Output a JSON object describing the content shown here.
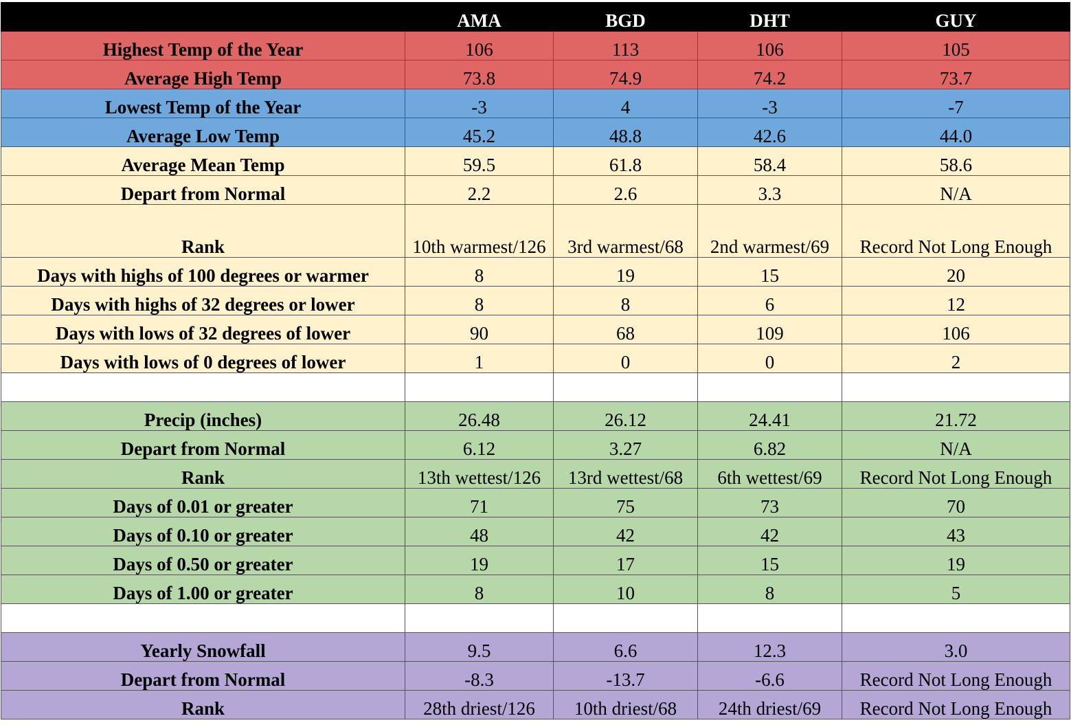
{
  "header": {
    "corner": "",
    "stations": [
      "AMA",
      "BGD",
      "DHT",
      "GUY"
    ]
  },
  "rows": [
    {
      "label": "Highest Temp of the Year",
      "values": [
        "106",
        "113",
        "106",
        "105"
      ],
      "color": "#e06666"
    },
    {
      "label": "Average High Temp",
      "values": [
        "73.8",
        "74.9",
        "74.2",
        "73.7"
      ],
      "color": "#e06666"
    },
    {
      "label": "Lowest Temp of the Year",
      "values": [
        "-3",
        "4",
        "-3",
        "-7"
      ],
      "color": "#6fa8dc"
    },
    {
      "label": "Average Low Temp",
      "values": [
        "45.2",
        "48.8",
        "42.6",
        "44.0"
      ],
      "color": "#6fa8dc"
    },
    {
      "label": "Average Mean Temp",
      "values": [
        "59.5",
        "61.8",
        "58.4",
        "58.6"
      ],
      "color": "#fff2cc"
    },
    {
      "label": "Depart from Normal",
      "values": [
        "2.2",
        "2.6",
        "3.3",
        "N/A"
      ],
      "color": "#fff2cc"
    },
    {
      "label": "Rank",
      "values": [
        "10th warmest/126",
        "3rd warmest/68",
        "2nd warmest/69",
        "Record Not Long Enough"
      ],
      "color": "#fff2cc"
    },
    {
      "label": "Days with highs of 100 degrees or warmer",
      "values": [
        "8",
        "19",
        "15",
        "20"
      ],
      "color": "#fff2cc"
    },
    {
      "label": "Days with highs of 32 degrees or lower",
      "values": [
        "8",
        "8",
        "6",
        "12"
      ],
      "color": "#fff2cc"
    },
    {
      "label": "Days with lows of 32 degrees of lower",
      "values": [
        "90",
        "68",
        "109",
        "106"
      ],
      "color": "#fff2cc"
    },
    {
      "label": "Days with lows of 0 degrees of lower",
      "values": [
        "1",
        "0",
        "0",
        "2"
      ],
      "color": "#fff2cc"
    },
    {
      "label": "",
      "values": [
        "",
        "",
        "",
        ""
      ],
      "color": "#ffffff"
    },
    {
      "label": "Precip (inches)",
      "values": [
        "26.48",
        "26.12",
        "24.41",
        "21.72"
      ],
      "color": "#b6d7a8"
    },
    {
      "label": "Depart from Normal",
      "values": [
        "6.12",
        "3.27",
        "6.82",
        "N/A"
      ],
      "color": "#b6d7a8"
    },
    {
      "label": "Rank",
      "values": [
        "13th wettest/126",
        "13rd wettest/68",
        "6th wettest/69",
        "Record Not Long Enough"
      ],
      "color": "#b6d7a8"
    },
    {
      "label": "Days of 0.01 or greater",
      "values": [
        "71",
        "75",
        "73",
        "70"
      ],
      "color": "#b6d7a8"
    },
    {
      "label": "Days of 0.10 or greater",
      "values": [
        "48",
        "42",
        "42",
        "43"
      ],
      "color": "#b6d7a8"
    },
    {
      "label": "Days of 0.50 or greater",
      "values": [
        "19",
        "17",
        "15",
        "19"
      ],
      "color": "#b6d7a8"
    },
    {
      "label": "Days of 1.00 or greater",
      "values": [
        "8",
        "10",
        "8",
        "5"
      ],
      "color": "#b6d7a8"
    },
    {
      "label": "",
      "values": [
        "",
        "",
        "",
        ""
      ],
      "color": "#ffffff"
    },
    {
      "label": "Yearly Snowfall",
      "values": [
        "9.5",
        "6.6",
        "12.3",
        "3.0"
      ],
      "color": "#b4a7d6"
    },
    {
      "label": "Depart from Normal",
      "values": [
        "-8.3",
        "-13.7",
        "-6.6",
        "Record Not Long Enough"
      ],
      "color": "#b4a7d6"
    },
    {
      "label": "Rank",
      "values": [
        "28th driest/126",
        "10th driest/68",
        "24th driest/69",
        "Record Not Long Enough"
      ],
      "color": "#b4a7d6"
    }
  ]
}
